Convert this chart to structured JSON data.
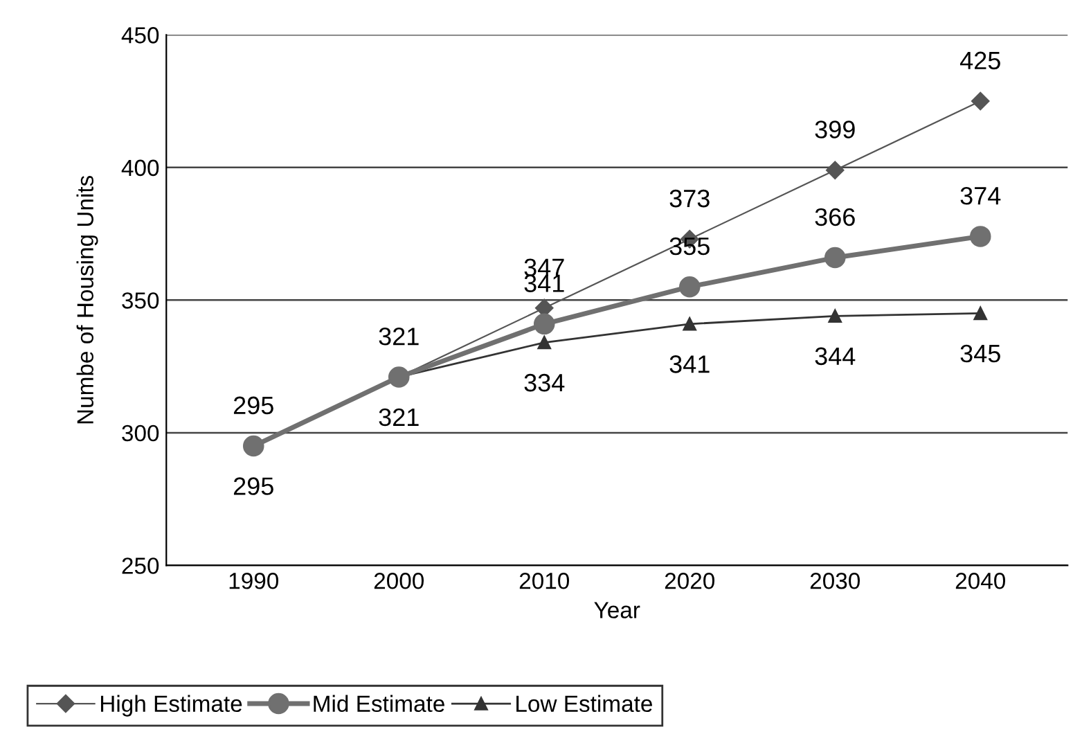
{
  "chart_data": {
    "type": "line",
    "xlabel": "Year",
    "ylabel": "Numbe of Housing Units",
    "categories": [
      "1990",
      "2000",
      "2010",
      "2020",
      "2030",
      "2040"
    ],
    "ylim": [
      250,
      450
    ],
    "yticks": [
      250,
      300,
      350,
      400,
      450
    ],
    "grid": "y",
    "legend": "bottom",
    "series": [
      {
        "name": "High Estimate",
        "color": "#555555",
        "marker": "diamond",
        "values": [
          null,
          321,
          347,
          373,
          399,
          425
        ],
        "value_labels": [
          null,
          null,
          "347",
          "373",
          "399",
          "425"
        ]
      },
      {
        "name": "Mid Estimate",
        "color": "#707070",
        "marker": "circle",
        "values": [
          295,
          321,
          341,
          355,
          366,
          374
        ],
        "value_labels": [
          "295",
          "321",
          "341",
          "355",
          "366",
          "374"
        ]
      },
      {
        "name": "Low Estimate",
        "color": "#333333",
        "marker": "triangle",
        "values": [
          295,
          321,
          334,
          341,
          344,
          345
        ],
        "value_labels": [
          "295",
          "321",
          "334",
          "341",
          "344",
          "345"
        ]
      }
    ]
  }
}
